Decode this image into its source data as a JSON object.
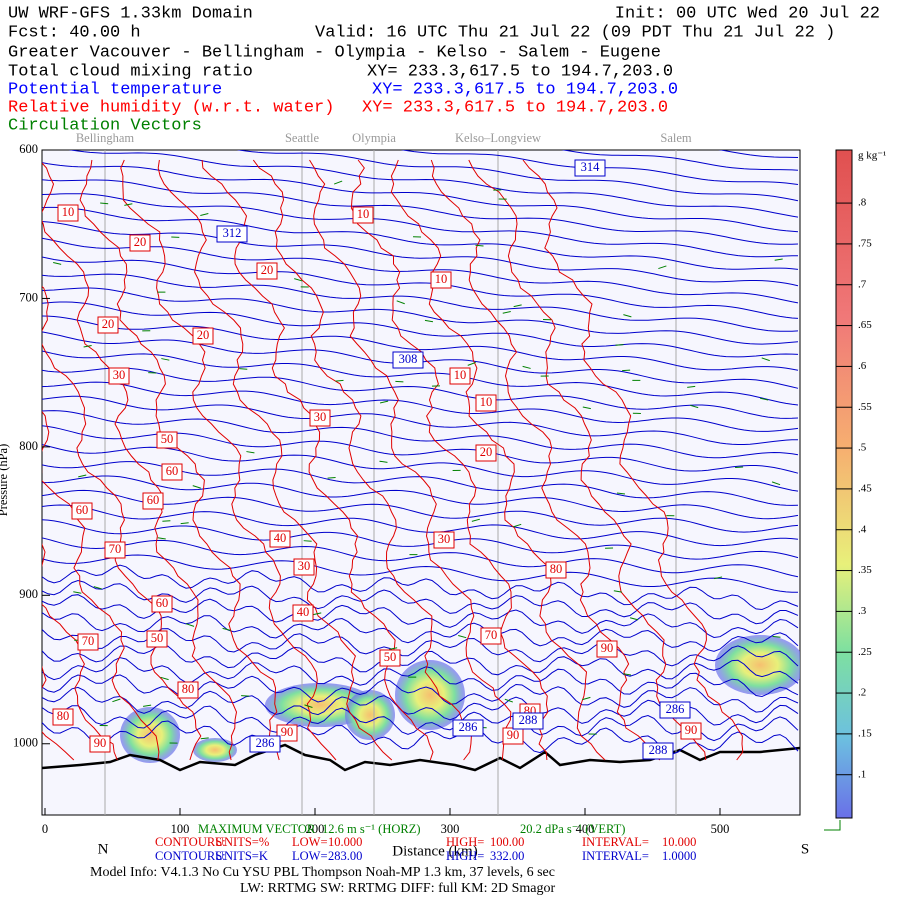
{
  "chart_data": {
    "type": "cross-section",
    "title": "UW WRF-GFS 1.33km Domain",
    "init": "Init: 00 UTC Wed 20 Jul 22",
    "forecast": "Fcst:   40.00 h",
    "valid": "Valid: 16 UTC Thu 21 Jul 22  (09 PDT Thu 21 Jul 22  )",
    "subtitle": "Greater Vacouver - Bellingham - Olympia - Kelso - Salem - Eugene",
    "fields": [
      {
        "name": "Total cloud mixing ratio",
        "xy": "XY= 233.3,617.5 to 194.7,203.0",
        "color": "#000000"
      },
      {
        "name": "Potential temperature",
        "xy": "XY= 233.3,617.5 to 194.7,203.0",
        "color": "#0000ff"
      },
      {
        "name": "Relative humidity (w.r.t. water)",
        "xy": "XY= 233.3,617.5 to 194.7,203.0",
        "color": "#ff0000"
      },
      {
        "name": "Circulation Vectors",
        "color": "#008000"
      }
    ],
    "places": [
      "Bellingham",
      "Seattle",
      "Olympia",
      "Kelso–Longview",
      "Salem"
    ],
    "xlim": [
      0,
      559
    ],
    "xticks": [
      0,
      100,
      200,
      300,
      400,
      500
    ],
    "ylim": [
      600,
      1048
    ],
    "yticks": [
      600,
      700,
      800,
      900,
      1000
    ],
    "ylabel": "Pressure (hPa)",
    "xlabel": "Distance (km)",
    "x_left": "N",
    "x_right": "S",
    "rh_labels": [
      "10",
      "10",
      "10",
      "20",
      "20",
      "20",
      "20",
      "10",
      "10",
      "30",
      "30",
      "20",
      "50",
      "60",
      "60",
      "60",
      "40",
      "30",
      "70",
      "30",
      "80",
      "60",
      "40",
      "50",
      "70",
      "70",
      "90",
      "50",
      "80",
      "80",
      "80",
      "90",
      "90",
      "90",
      "90"
    ],
    "theta_labels": [
      "314",
      "312",
      "308",
      "286",
      "288",
      "286",
      "288",
      "286"
    ],
    "colorbar": {
      "units": "g kg⁻¹",
      "lim": [
        0.047,
        0.865
      ],
      "ticks": [
        {
          "value": 0.1,
          "label": ".1"
        },
        {
          "value": 0.15,
          "label": ".15"
        },
        {
          "value": 0.2,
          "label": ".2"
        },
        {
          "value": 0.25,
          "label": ".25"
        },
        {
          "value": 0.3,
          "label": ".3"
        },
        {
          "value": 0.35,
          "label": ".35"
        },
        {
          "value": 0.4,
          "label": ".4"
        },
        {
          "value": 0.45,
          "label": ".45"
        },
        {
          "value": 0.5,
          "label": ".5"
        },
        {
          "value": 0.55,
          "label": ".55"
        },
        {
          "value": 0.6,
          "label": ".6"
        },
        {
          "value": 0.65,
          "label": ".65"
        },
        {
          "value": 0.7,
          "label": ".7"
        },
        {
          "value": 0.75,
          "label": ".75"
        },
        {
          "value": 0.8,
          "label": ".8"
        }
      ]
    },
    "footer": {
      "vector_title": "MAXIMUM VECTOR",
      "vector_h": "12.6 m s⁻¹ (HORZ)",
      "vector_v": "20.2 dPa s⁻¹ (VERT)",
      "rh_contours": [
        "CONTOURS:",
        "UNITS=%",
        "LOW=",
        "10.000",
        "HIGH=",
        "100.00",
        "INTERVAL=",
        "10.000"
      ],
      "theta_contours": [
        "CONTOURS:",
        "UNITS=K",
        "LOW=",
        "283.00",
        "HIGH=",
        "332.00",
        "INTERVAL=",
        "1.0000"
      ],
      "model": "Model Info: V4.1.3    No Cu    YSU PBL   Thompson      Noah-MP    1.3 km,   37 levels,    6 sec",
      "physics": "LW: RRTMG  SW: RRTMG    DIFF: full    KM: 2D Smagor"
    }
  }
}
